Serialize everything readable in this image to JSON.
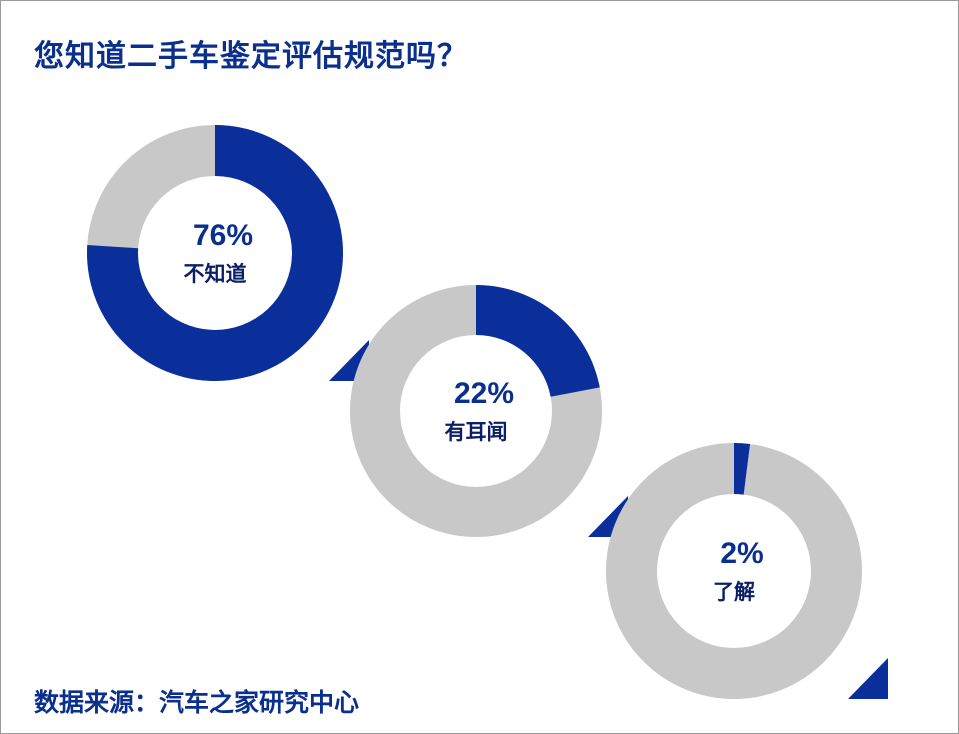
{
  "title": "您知道二手车鉴定评估规范吗？",
  "source": "数据来源：汽车之家研究中心",
  "colors": {
    "accent": "#0a2f9a",
    "track": "#c8c8c8",
    "text": "#0a2f8c"
  },
  "chart_data": {
    "type": "pie",
    "variant": "donut",
    "series": [
      {
        "category": "不知道",
        "value": 76,
        "label": "76%"
      },
      {
        "category": "有耳闻",
        "value": 22,
        "label": "22%"
      },
      {
        "category": "了解",
        "value": 2,
        "label": "2%"
      }
    ]
  }
}
